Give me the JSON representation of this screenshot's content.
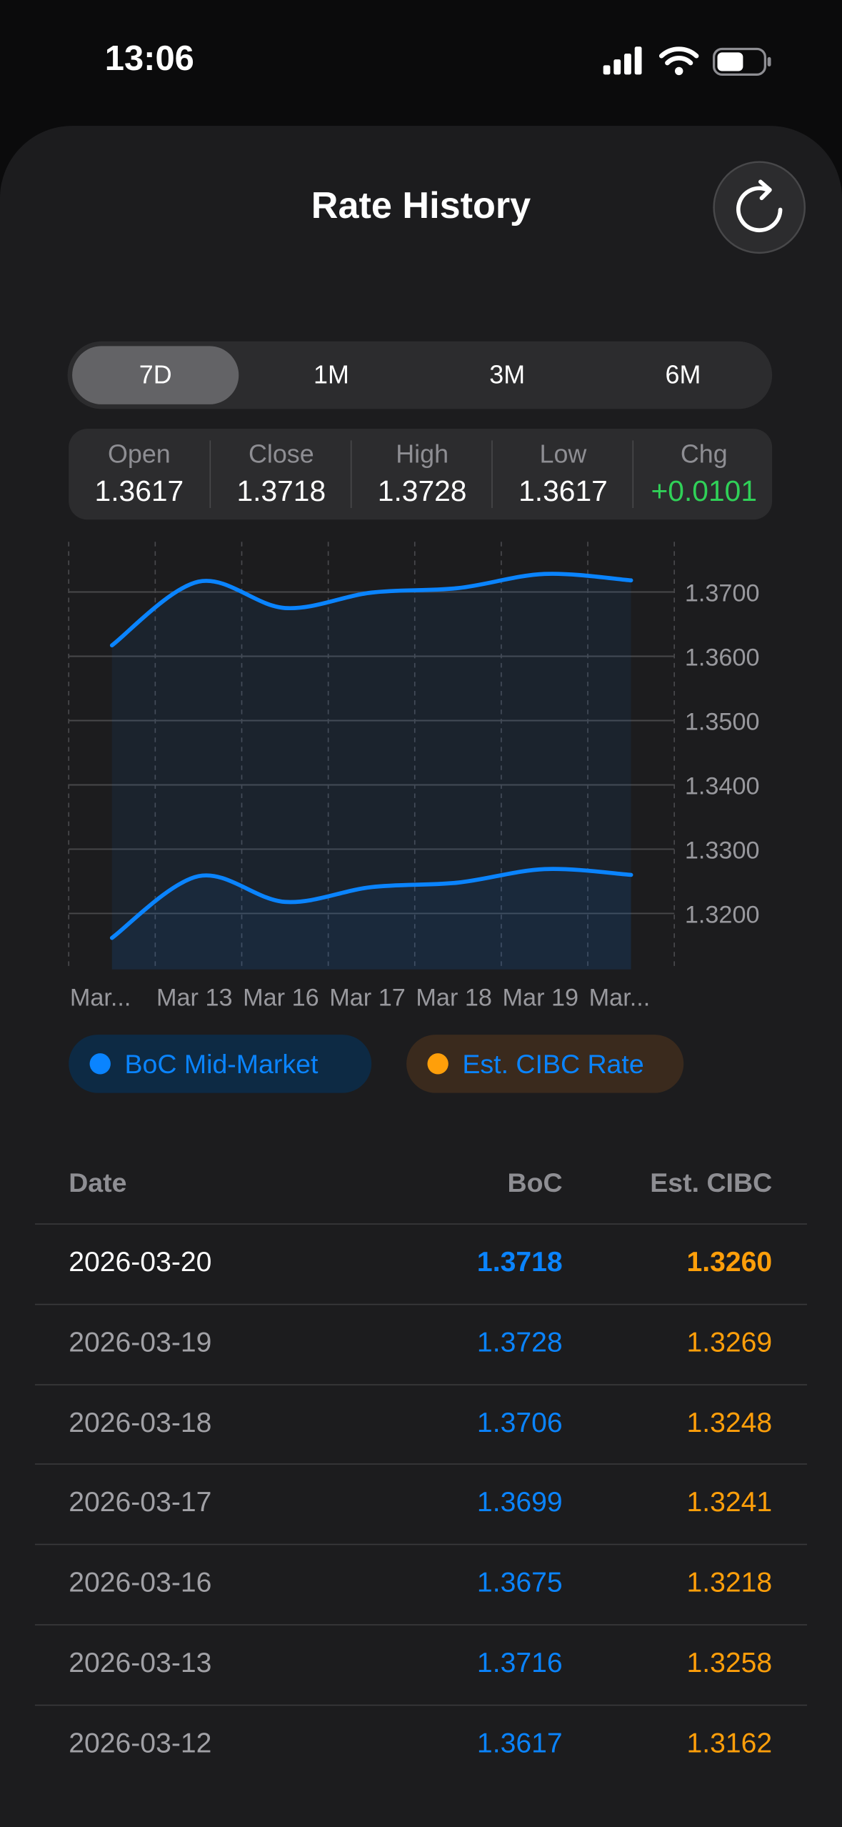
{
  "status_bar": {
    "time": "13:06"
  },
  "header": {
    "title": "Rate History"
  },
  "tabs": {
    "items": [
      "7D",
      "1M",
      "3M",
      "6M"
    ],
    "selected": 0
  },
  "stats": [
    {
      "label": "Open",
      "value": "1.3617"
    },
    {
      "label": "Close",
      "value": "1.3718"
    },
    {
      "label": "High",
      "value": "1.3728"
    },
    {
      "label": "Low",
      "value": "1.3617"
    },
    {
      "label": "Chg",
      "value": "+0.0101"
    }
  ],
  "chart": {
    "type": "line",
    "categories": [
      "Mar...",
      "Mar 13",
      "Mar 16",
      "Mar 17",
      "Mar 18",
      "Mar 19",
      "Mar..."
    ],
    "series": [
      {
        "name": "BoC Mid-Market",
        "color": "#0a84ff",
        "values": [
          1.3617,
          1.3716,
          1.3675,
          1.3699,
          1.3706,
          1.3728,
          1.3718
        ]
      },
      {
        "name": "Est. CIBC Rate",
        "color": "#ff9f0a",
        "values": [
          1.3162,
          1.3258,
          1.3218,
          1.3241,
          1.3248,
          1.3269,
          1.326
        ]
      }
    ],
    "line_color": "#0a84ff",
    "ylim": [
      1.3113,
      1.3778
    ],
    "yticks": [
      {
        "value": 1.32,
        "label": "1.3200"
      },
      {
        "value": 1.33,
        "label": "1.3300"
      },
      {
        "value": 1.34,
        "label": "1.3400"
      },
      {
        "value": 1.35,
        "label": "1.3500"
      },
      {
        "value": 1.36,
        "label": "1.3600"
      },
      {
        "value": 1.37,
        "label": "1.3700"
      }
    ],
    "grid": true
  },
  "table": {
    "columns": [
      "Date",
      "BoC",
      "Est. CIBC"
    ],
    "rows": [
      [
        "2026-03-20",
        "1.3718",
        "1.3260"
      ],
      [
        "2026-03-19",
        "1.3728",
        "1.3269"
      ],
      [
        "2026-03-18",
        "1.3706",
        "1.3248"
      ],
      [
        "2026-03-17",
        "1.3699",
        "1.3241"
      ],
      [
        "2026-03-16",
        "1.3675",
        "1.3218"
      ],
      [
        "2026-03-13",
        "1.3716",
        "1.3258"
      ],
      [
        "2026-03-12",
        "1.3617",
        "1.3162"
      ]
    ]
  }
}
